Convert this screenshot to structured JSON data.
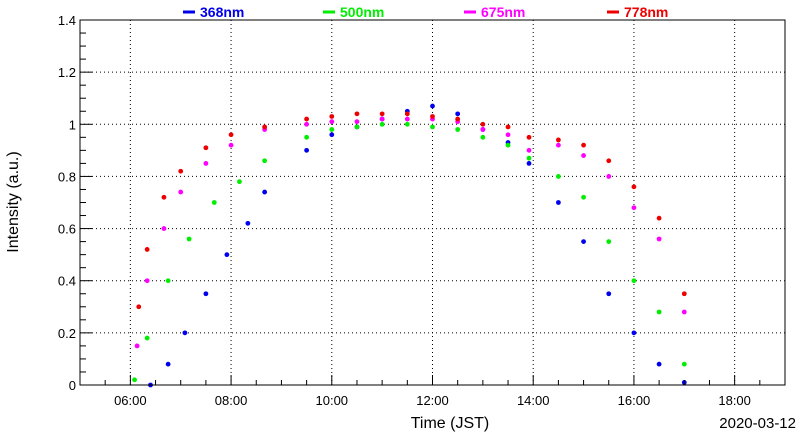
{
  "chart_data": {
    "type": "scatter",
    "title": "",
    "xlabel": "Time (JST)",
    "ylabel": "Intensity (a.u.)",
    "date": "2020-03-12",
    "xlim": [
      "05:00",
      "19:00"
    ],
    "ylim": [
      0,
      1.4
    ],
    "grid": true,
    "legend_position": "top",
    "x_ticks": [
      "06:00",
      "08:00",
      "10:00",
      "12:00",
      "14:00",
      "16:00",
      "18:00"
    ],
    "y_ticks": [
      "0",
      "0.2",
      "0.4",
      "0.6",
      "0.8",
      "1",
      "1.2",
      "1.4"
    ],
    "series": [
      {
        "name": "368nm",
        "color": "#0000ee",
        "x": [
          "06:24",
          "06:45",
          "07:05",
          "07:30",
          "07:55",
          "08:20",
          "08:40",
          "09:30",
          "10:00",
          "10:30",
          "11:00",
          "11:30",
          "12:00",
          "12:30",
          "13:00",
          "13:30",
          "13:55",
          "14:30",
          "15:00",
          "15:30",
          "16:00",
          "16:30",
          "17:00"
        ],
        "values": [
          0.0,
          0.08,
          0.2,
          0.35,
          0.5,
          0.62,
          0.74,
          0.9,
          0.96,
          0.99,
          1.02,
          1.05,
          1.07,
          1.04,
          0.98,
          0.93,
          0.85,
          0.7,
          0.55,
          0.35,
          0.2,
          0.08,
          0.01
        ]
      },
      {
        "name": "500nm",
        "color": "#00ee00",
        "x": [
          "06:05",
          "06:20",
          "06:45",
          "07:10",
          "07:40",
          "08:10",
          "08:40",
          "09:30",
          "10:00",
          "10:30",
          "11:00",
          "11:30",
          "12:00",
          "12:30",
          "13:00",
          "13:30",
          "13:55",
          "14:30",
          "15:00",
          "15:30",
          "16:00",
          "16:30",
          "17:00"
        ],
        "values": [
          0.02,
          0.18,
          0.4,
          0.56,
          0.7,
          0.78,
          0.86,
          0.95,
          0.98,
          0.99,
          1.0,
          1.0,
          0.99,
          0.98,
          0.95,
          0.92,
          0.87,
          0.8,
          0.72,
          0.55,
          0.4,
          0.28,
          0.08
        ]
      },
      {
        "name": "675nm",
        "color": "#ff00ff",
        "x": [
          "06:08",
          "06:20",
          "06:40",
          "07:00",
          "07:30",
          "08:00",
          "08:40",
          "09:30",
          "10:00",
          "10:30",
          "11:00",
          "11:30",
          "12:00",
          "12:30",
          "13:00",
          "13:30",
          "13:55",
          "14:30",
          "15:00",
          "15:30",
          "16:00",
          "16:30",
          "17:00"
        ],
        "values": [
          0.15,
          0.4,
          0.6,
          0.74,
          0.85,
          0.92,
          0.98,
          1.0,
          1.01,
          1.01,
          1.02,
          1.02,
          1.02,
          1.01,
          0.98,
          0.96,
          0.9,
          0.92,
          0.88,
          0.8,
          0.68,
          0.56,
          0.28
        ]
      },
      {
        "name": "778nm",
        "color": "#ee0000",
        "x": [
          "06:10",
          "06:20",
          "06:40",
          "07:00",
          "07:30",
          "08:00",
          "08:40",
          "09:30",
          "10:00",
          "10:30",
          "11:00",
          "11:30",
          "12:00",
          "12:30",
          "13:00",
          "13:30",
          "13:55",
          "14:30",
          "15:00",
          "15:30",
          "16:00",
          "16:30",
          "17:00"
        ],
        "values": [
          0.3,
          0.52,
          0.72,
          0.82,
          0.91,
          0.96,
          0.99,
          1.02,
          1.03,
          1.04,
          1.04,
          1.04,
          1.03,
          1.02,
          1.0,
          0.99,
          0.95,
          0.94,
          0.92,
          0.86,
          0.76,
          0.64,
          0.35
        ]
      }
    ]
  }
}
